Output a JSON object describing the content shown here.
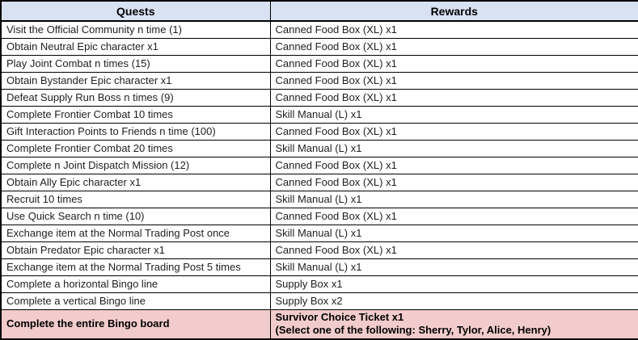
{
  "table": {
    "headers": {
      "quests": "Quests",
      "rewards": "Rewards"
    },
    "rows": [
      {
        "quest": "Visit the Official Community n time (1)",
        "reward": "Canned Food Box (XL) x1"
      },
      {
        "quest": "Obtain Neutral Epic character x1",
        "reward": "Canned Food Box (XL) x1"
      },
      {
        "quest": "Play Joint Combat n times (15)",
        "reward": "Canned Food Box (XL) x1"
      },
      {
        "quest": "Obtain Bystander Epic character x1",
        "reward": "Canned Food Box (XL) x1"
      },
      {
        "quest": "Defeat Supply Run Boss n times (9)",
        "reward": "Canned Food Box (XL) x1"
      },
      {
        "quest": "Complete Frontier Combat 10 times",
        "reward": "Skill Manual (L) x1"
      },
      {
        "quest": "Gift Interaction Points to Friends n time (100)",
        "reward": "Canned Food Box (XL) x1"
      },
      {
        "quest": "Complete Frontier Combat 20 times",
        "reward": "Skill Manual (L) x1"
      },
      {
        "quest": "Complete n Joint Dispatch Mission (12)",
        "reward": "Canned Food Box (XL) x1"
      },
      {
        "quest": "Obtain Ally Epic character x1",
        "reward": "Canned Food Box (XL) x1"
      },
      {
        "quest": "Recruit 10 times",
        "reward": "Skill Manual (L) x1"
      },
      {
        "quest": "Use Quick Search n time (10)",
        "reward": "Canned Food Box (XL) x1"
      },
      {
        "quest": "Exchange item at the Normal Trading Post once",
        "reward": "Skill Manual (L) x1"
      },
      {
        "quest": "Obtain Predator Epic character x1",
        "reward": "Canned Food Box (XL) x1"
      },
      {
        "quest": "Exchange item at the Normal Trading Post 5 times",
        "reward": "Skill Manual (L) x1"
      },
      {
        "quest": "Complete a horizontal Bingo line",
        "reward": "Supply Box x1"
      },
      {
        "quest": "Complete a vertical Bingo line",
        "reward": "Supply Box x2"
      }
    ],
    "final_row": {
      "quest": "Complete the entire Bingo board",
      "reward_line1": "Survivor Choice Ticket x1",
      "reward_line2": "(Select one of the following: Sherry, Tylor, Alice, Henry)"
    },
    "colors": {
      "header_bg": "#d9e2f3",
      "final_row_bg": "#f2cccc",
      "border": "#000000"
    }
  }
}
